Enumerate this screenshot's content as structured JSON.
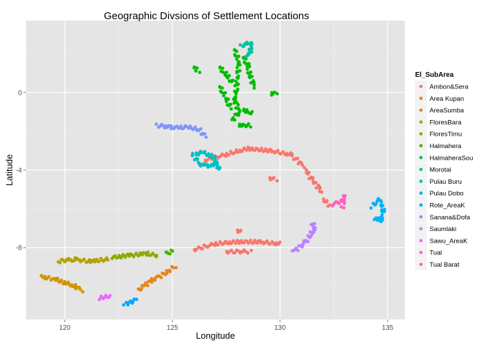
{
  "chart_data": {
    "type": "scatter",
    "title": "Geographic Divsions of Settlement Locations",
    "xlabel": "Longitude",
    "ylabel": "Latitude",
    "xlim": [
      118.2,
      135.8
    ],
    "ylim": [
      -11.7,
      3.7
    ],
    "x_ticks": [
      120,
      125,
      130,
      135
    ],
    "x_tick_labels": [
      "120",
      "125",
      "130",
      "135"
    ],
    "y_ticks": [
      0,
      -4,
      -8
    ],
    "y_tick_labels": [
      "0",
      "-4",
      "-8"
    ],
    "grid": true,
    "legend": {
      "title": "El_SubArea",
      "position": "right"
    },
    "series": [
      {
        "name": "Ambon&Sera",
        "color": "#F8766D",
        "segments": [
          [
            [
              126.5,
              -3.5
            ],
            [
              127.5,
              -3.2
            ],
            [
              128.5,
              -2.9
            ],
            [
              129.5,
              -3.0
            ],
            [
              130.5,
              -3.2
            ],
            [
              131.1,
              -3.8
            ]
          ],
          [
            [
              131.2,
              -4.0
            ],
            [
              131.5,
              -4.5
            ],
            [
              131.8,
              -4.9
            ],
            [
              131.9,
              -5.1
            ]
          ],
          [
            [
              132.0,
              -5.5
            ],
            [
              132.3,
              -5.8
            ]
          ],
          [
            [
              129.5,
              -4.4
            ],
            [
              129.8,
              -4.5
            ]
          ],
          [
            [
              126.0,
              -8.1
            ],
            [
              127.0,
              -7.8
            ],
            [
              128.0,
              -7.7
            ],
            [
              129.0,
              -7.7
            ],
            [
              130.0,
              -7.8
            ]
          ],
          [
            [
              128.0,
              -7.1
            ],
            [
              128.2,
              -7.2
            ]
          ],
          [
            [
              127.5,
              -8.2
            ],
            [
              128.6,
              -8.2
            ]
          ]
        ]
      },
      {
        "name": "Area Kupan",
        "color": "#E7851E",
        "segments": [
          [
            [
              123.4,
              -10.2
            ],
            [
              124.0,
              -9.7
            ],
            [
              124.7,
              -9.3
            ],
            [
              125.1,
              -9.0
            ]
          ]
        ]
      },
      {
        "name": "AreaSumba",
        "color": "#D09400",
        "segments": [
          [
            [
              118.9,
              -9.5
            ],
            [
              119.5,
              -9.6
            ],
            [
              120.0,
              -9.8
            ],
            [
              120.5,
              -10.0
            ],
            [
              120.8,
              -10.2
            ]
          ]
        ]
      },
      {
        "name": "FloresBara",
        "color": "#B2A100",
        "segments": [
          [
            [
              119.7,
              -8.7
            ],
            [
              120.4,
              -8.6
            ],
            [
              121.2,
              -8.7
            ],
            [
              122.0,
              -8.6
            ]
          ]
        ]
      },
      {
        "name": "FloresTimu",
        "color": "#89AC00",
        "segments": [
          [
            [
              122.2,
              -8.5
            ],
            [
              123.0,
              -8.4
            ],
            [
              123.8,
              -8.3
            ],
            [
              124.3,
              -8.4
            ]
          ]
        ]
      },
      {
        "name": "Halmahera",
        "color": "#45B500",
        "segments": [
          [
            [
              124.7,
              -8.3
            ],
            [
              125.0,
              -8.2
            ]
          ]
        ]
      },
      {
        "name": "Halmahera",
        "color": "#00BC00",
        "segments": [
          [
            [
              127.9,
              2.2
            ],
            [
              128.1,
              1.5
            ],
            [
              128.0,
              0.5
            ],
            [
              127.9,
              -0.4
            ],
            [
              128.1,
              -1.0
            ],
            [
              127.8,
              -1.4
            ]
          ],
          [
            [
              127.2,
              0.3
            ],
            [
              127.5,
              -0.3
            ],
            [
              127.7,
              -0.8
            ]
          ],
          [
            [
              127.2,
              1.3
            ],
            [
              127.5,
              0.9
            ],
            [
              127.8,
              0.5
            ]
          ],
          [
            [
              128.3,
              1.8
            ],
            [
              128.5,
              1.4
            ],
            [
              128.6,
              0.9
            ],
            [
              128.8,
              0.3
            ]
          ],
          [
            [
              128.3,
              -0.9
            ],
            [
              128.7,
              -1.1
            ]
          ],
          [
            [
              128.1,
              -1.7
            ],
            [
              128.6,
              -1.7
            ]
          ],
          [
            [
              126.0,
              1.3
            ],
            [
              126.2,
              1.1
            ]
          ],
          [
            [
              129.6,
              -0.1
            ],
            [
              129.8,
              0.0
            ]
          ]
        ]
      },
      {
        "name": "HalmaheraSou",
        "color": "#00BE6B",
        "segments": []
      },
      {
        "name": "Morotai",
        "color": "#00C1A0",
        "segments": [
          [
            [
              128.2,
              2.4
            ],
            [
              128.5,
              2.5
            ],
            [
              128.7,
              2.5
            ],
            [
              128.6,
              2.0
            ],
            [
              128.4,
              1.9
            ]
          ]
        ]
      },
      {
        "name": "Pulau Buru",
        "color": "#00BFC4",
        "segments": [
          [
            [
              126.0,
              -3.2
            ],
            [
              126.4,
              -3.1
            ],
            [
              126.9,
              -3.3
            ],
            [
              127.1,
              -3.6
            ],
            [
              126.7,
              -3.8
            ],
            [
              126.3,
              -3.7
            ],
            [
              126.0,
              -3.3
            ]
          ],
          [
            [
              127.0,
              -3.8
            ],
            [
              127.2,
              -3.9
            ]
          ]
        ]
      },
      {
        "name": "Pulau Dobo",
        "color": "#00B2F4",
        "segments": [
          [
            [
              134.3,
              -5.9
            ],
            [
              134.6,
              -5.5
            ],
            [
              134.8,
              -6.0
            ],
            [
              134.7,
              -6.6
            ],
            [
              134.4,
              -6.5
            ]
          ]
        ]
      },
      {
        "name": "Rote_AreaK",
        "color": "#00A5FF",
        "segments": [
          [
            [
              122.8,
              -10.9
            ],
            [
              123.3,
              -10.7
            ]
          ]
        ]
      },
      {
        "name": "Sanana&Dofa",
        "color": "#7F96FF",
        "segments": [
          [
            [
              124.3,
              -1.7
            ],
            [
              125.0,
              -1.8
            ],
            [
              125.7,
              -1.8
            ],
            [
              126.2,
              -1.9
            ],
            [
              126.4,
              -2.1
            ],
            [
              126.5,
              -2.3
            ]
          ]
        ]
      },
      {
        "name": "Saumlaki",
        "color": "#B983FF",
        "segments": [
          [
            [
              130.6,
              -8.2
            ],
            [
              131.1,
              -7.8
            ],
            [
              131.4,
              -7.4
            ],
            [
              131.6,
              -7.0
            ],
            [
              131.5,
              -6.7
            ]
          ]
        ]
      },
      {
        "name": "Sawu_AreaK",
        "color": "#E56CF8",
        "segments": [
          [
            [
              121.6,
              -10.6
            ],
            [
              122.1,
              -10.5
            ]
          ]
        ]
      },
      {
        "name": "Tual",
        "color": "#FF61C3",
        "segments": [
          [
            [
              132.4,
              -5.8
            ],
            [
              132.8,
              -5.6
            ],
            [
              133.0,
              -5.4
            ],
            [
              132.9,
              -5.9
            ]
          ]
        ]
      },
      {
        "name": "Tual Barat",
        "color": "#FF6C91",
        "segments": []
      }
    ]
  }
}
